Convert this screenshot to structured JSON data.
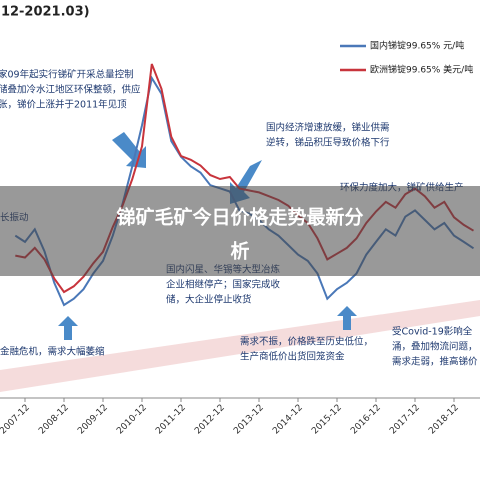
{
  "chart_data": {
    "type": "line",
    "title": ".12-2021.03)",
    "overlay_title": [
      "锑矿毛矿今日价格走势最新分",
      "析"
    ],
    "x": [
      null,
      "2007-12",
      null,
      null,
      null,
      "2008-12",
      null,
      null,
      null,
      "2009-12",
      null,
      null,
      null,
      "2010-12",
      null,
      null,
      null,
      "2011-12",
      null,
      null,
      null,
      "2012-12",
      null,
      null,
      null,
      "2013-12",
      null,
      null,
      null,
      "2014-12",
      null,
      null,
      null,
      "2015-12",
      null,
      null,
      null,
      "2016-12",
      null,
      null,
      null,
      "2017-12",
      null,
      null,
      null,
      "2018-12",
      null,
      null
    ],
    "series": [
      {
        "name": "国内锑锭99.65% 元/吨",
        "color": "#4a78b8",
        "values": [
          50,
          48,
          52,
          45,
          35,
          28,
          30,
          33,
          38,
          42,
          50,
          60,
          72,
          85,
          100,
          95,
          80,
          75,
          72,
          70,
          66,
          65,
          64,
          58,
          57,
          55,
          52,
          50,
          47,
          44,
          42,
          38,
          30,
          33,
          35,
          38,
          44,
          48,
          52,
          50,
          56,
          58,
          55,
          52,
          54,
          50,
          48,
          46
        ]
      },
      {
        "name": "欧洲锑锭99.65% 美元/吨",
        "color": "#c8343c",
        "axis": "y2",
        "values": [
          5800,
          5700,
          6200,
          5600,
          4600,
          3900,
          4200,
          4700,
          5400,
          6000,
          7300,
          8400,
          9800,
          11500,
          15800,
          14500,
          12000,
          11000,
          10800,
          10500,
          10000,
          9800,
          9900,
          9300,
          9200,
          9100,
          8900,
          8700,
          8400,
          7900,
          7500,
          6700,
          5600,
          5900,
          6200,
          6700,
          7500,
          8100,
          8600,
          8300,
          9000,
          9300,
          8900,
          8300,
          8600,
          7800,
          7400,
          7100
        ]
      }
    ],
    "annotations": [
      [
        "家09年起实行锑矿开采总量控制",
        "储叠加冷水江地区环保整顿，供应",
        "张，锑价上涨并于2011年见顶"
      ],
      [
        "国内经济增速放缓，锑业供需",
        "逆转，锑品积压导致价格下行"
      ],
      [
        "环保力度加大，锑矿供给生产"
      ],
      [
        "长振动"
      ],
      [
        "国内闪星、华锡等大型冶炼",
        "企业相继停产；国家完成收",
        "储，大企业停止收货"
      ],
      [
        "金融危机，需求大幅萎缩"
      ],
      [
        "需求不振，价格跌至历史低位，",
        "生产商低价出货回笼资金"
      ],
      [
        "受Covid-19影响全",
        "涌，叠加物流问题，",
        "需求走弱，推高锑价"
      ]
    ]
  }
}
